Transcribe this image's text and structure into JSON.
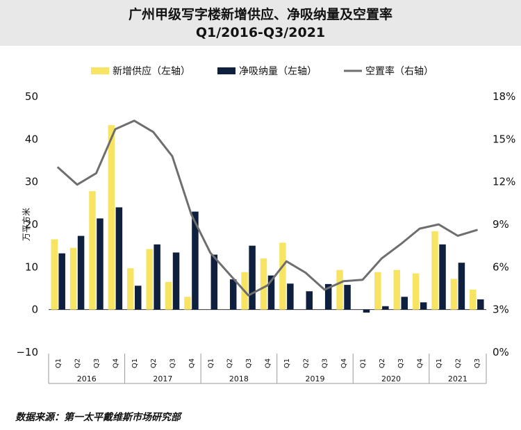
{
  "title_line1": "广州甲级写字楼新增供应、净吸纳量及空置率",
  "title_line2": "Q1/2016-Q3/2021",
  "source": "数据来源：第一太平戴维斯市场研究部",
  "chart_data": {
    "type": "bar+line",
    "categories": [
      "Q1 2016",
      "Q2 2016",
      "Q3 2016",
      "Q4 2016",
      "Q1 2017",
      "Q2 2017",
      "Q3 2017",
      "Q4 2017",
      "Q1 2018",
      "Q2 2018",
      "Q3 2018",
      "Q4 2018",
      "Q1 2019",
      "Q2 2019",
      "Q3 2019",
      "Q4 2019",
      "Q1 2020",
      "Q2 2020",
      "Q3 2020",
      "Q4 2020",
      "Q1 2021",
      "Q2 2021",
      "Q3 2021"
    ],
    "quarter_labels": [
      "Q1",
      "Q2",
      "Q3",
      "Q4",
      "Q1",
      "Q2",
      "Q3",
      "Q4",
      "Q1",
      "Q2",
      "Q3",
      "Q4",
      "Q1",
      "Q2",
      "Q3",
      "Q4",
      "Q1",
      "Q2",
      "Q3",
      "Q4",
      "Q1",
      "Q2",
      "Q3"
    ],
    "year_labels": [
      "2016",
      "2017",
      "2018",
      "2019",
      "2020",
      "2021"
    ],
    "ylabel": "万平方米",
    "ylim_left": [
      -10,
      50
    ],
    "yticks_left": [
      "50",
      "40",
      "30",
      "20",
      "10",
      "0",
      "−10"
    ],
    "ylim_right": [
      0,
      18
    ],
    "yticks_right": [
      "18%",
      "15%",
      "12%",
      "9%",
      "6%",
      "3%",
      "0%"
    ],
    "series": [
      {
        "name": "新增供应（左轴）",
        "axis": "left",
        "kind": "bar",
        "color": "#f7e463",
        "values": [
          16.5,
          14.5,
          27.8,
          43.3,
          9.7,
          14.2,
          6.5,
          3.0,
          null,
          null,
          8.8,
          12.0,
          15.7,
          null,
          null,
          9.3,
          null,
          8.8,
          9.3,
          8.5,
          18.4,
          7.2,
          4.7
        ]
      },
      {
        "name": "净吸纳量（左轴）",
        "axis": "left",
        "kind": "bar",
        "color": "#0f1f3e",
        "values": [
          13.2,
          17.3,
          21.4,
          24.0,
          5.6,
          15.3,
          13.4,
          23.0,
          12.9,
          7.1,
          15.0,
          8.0,
          6.1,
          4.3,
          6.0,
          5.8,
          -0.7,
          0.8,
          3.0,
          1.7,
          15.3,
          11.0,
          2.4
        ]
      },
      {
        "name": "空置率（右轴）",
        "axis": "right",
        "kind": "line",
        "color": "#6e6e6e",
        "values": [
          13.0,
          11.8,
          12.6,
          15.7,
          16.3,
          15.5,
          13.8,
          9.7,
          7.0,
          5.5,
          4.0,
          4.7,
          6.4,
          5.6,
          4.4,
          5.0,
          5.1,
          6.6,
          7.6,
          8.7,
          9.0,
          8.2,
          8.6
        ]
      }
    ]
  }
}
